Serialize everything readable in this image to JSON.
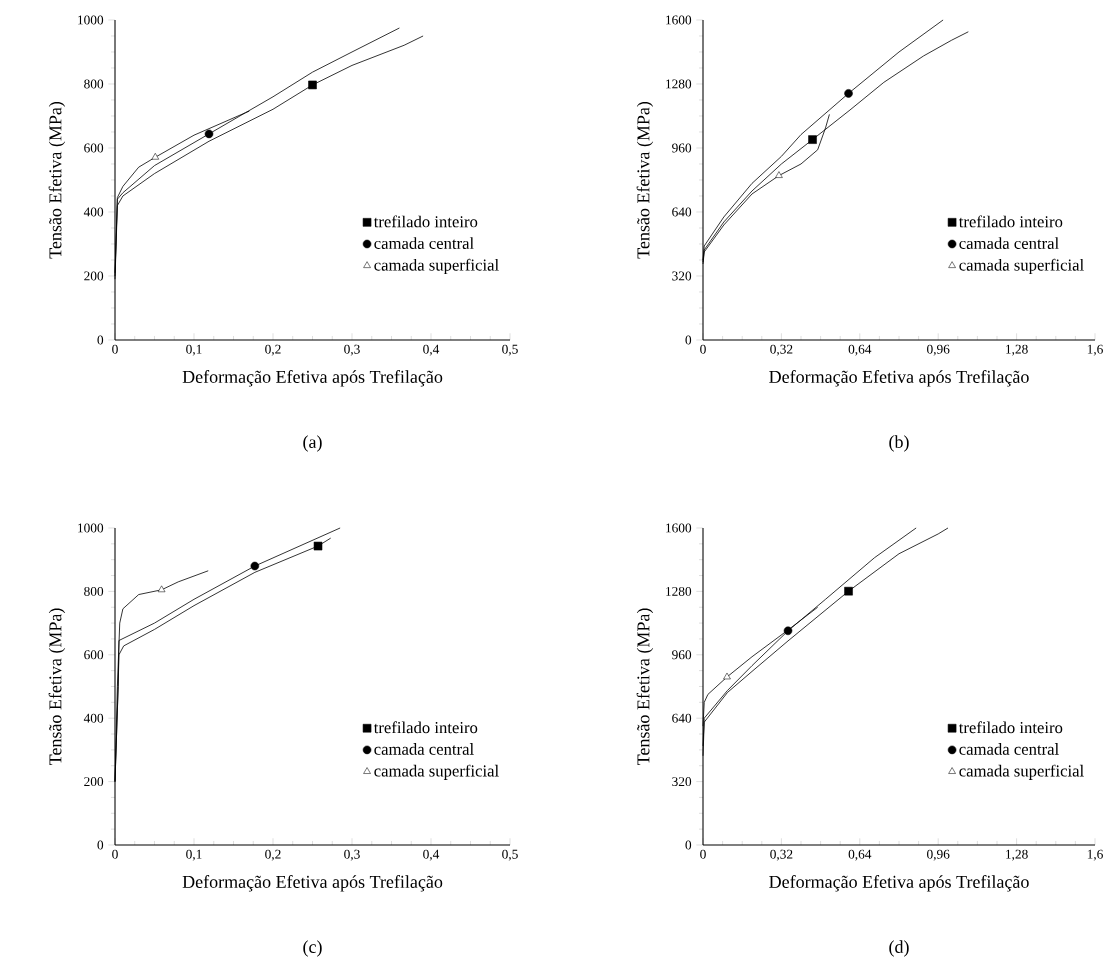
{
  "chart_data": [
    {
      "type": "line",
      "xlabel": "Deformação Efetiva após Trefilação",
      "ylabel": "Tensão Efetiva (MPa)",
      "annotations": [
        "(a)"
      ],
      "legend": "right",
      "xlim": [
        0,
        0.5
      ],
      "ylim": [
        0,
        1000
      ],
      "xticks": [
        0,
        {
          "value": 0.1,
          "label": "0,1"
        },
        {
          "value": 0.2,
          "label": "0,2"
        },
        {
          "value": 0.3,
          "label": "0,3"
        },
        {
          "value": 0.4,
          "label": "0,4"
        },
        {
          "value": 0.5,
          "label": "0,5"
        }
      ],
      "yticks": [
        0,
        200,
        400,
        600,
        800,
        1000
      ],
      "series": [
        {
          "color": "#000000",
          "x": [
            0,
            0.003,
            0.01,
            0.05,
            0.119,
            0.2,
            0.25,
            0.3,
            0.366,
            0.39
          ],
          "values": [
            190,
            420,
            450,
            520,
            621,
            721,
            797,
            858,
            921,
            950
          ]
        },
        {
          "color": "#000000",
          "x": [
            0,
            0.003,
            0.01,
            0.05,
            0.119,
            0.165,
            0.2,
            0.25,
            0.3,
            0.36
          ],
          "values": [
            200,
            440,
            460,
            545,
            644,
            710,
            760,
            837,
            900,
            975
          ]
        },
        {
          "color": "#000000",
          "x": [
            0,
            0.003,
            0.01,
            0.03,
            0.051,
            0.1,
            0.165,
            0.17
          ],
          "values": [
            210,
            445,
            480,
            540,
            571,
            640,
            710,
            715
          ]
        },
        {
          "name": "trefilado inteiro",
          "type": "scatter",
          "color": "#000000",
          "marker": "square",
          "x": [
            0.25
          ],
          "values": [
            797
          ]
        },
        {
          "name": "camada central",
          "type": "scatter",
          "color": "#000000",
          "marker": "circle",
          "x": [
            0.119
          ],
          "values": [
            644
          ]
        },
        {
          "name": "camada superficial",
          "type": "scatter",
          "color": "#000000",
          "marker": "triangle",
          "x": [
            0.051
          ],
          "values": [
            571
          ]
        }
      ]
    },
    {
      "type": "line",
      "xlabel": "Deformação Efetiva após Trefilação",
      "ylabel": "Tensão Efetiva (MPa)",
      "annotations": [
        "(b)"
      ],
      "legend": "right",
      "xlim": [
        0,
        1.6
      ],
      "ylim": [
        0,
        1600
      ],
      "xticks": [
        0,
        {
          "value": 0.32,
          "label": "0,32"
        },
        {
          "value": 0.64,
          "label": "0,64"
        },
        {
          "value": 0.96,
          "label": "0,96"
        },
        {
          "value": 1.28,
          "label": "1,28"
        },
        {
          "value": 1.6,
          "label": "1,6"
        }
      ],
      "yticks": [
        0,
        320,
        640,
        960,
        1280,
        1600
      ],
      "series": [
        {
          "color": "#000000",
          "x": [
            0,
            0.005,
            0.085,
            0.2,
            0.32,
            0.447,
            0.6,
            0.738,
            0.9,
            1.015,
            1.083
          ],
          "values": [
            390,
            450,
            590,
            745,
            880,
            1002,
            1150,
            1288,
            1420,
            1499,
            1541
          ]
        },
        {
          "color": "#000000",
          "x": [
            0,
            0.005,
            0.085,
            0.2,
            0.32,
            0.4,
            0.594,
            0.8,
            0.98
          ],
          "values": [
            400,
            470,
            615,
            783,
            918,
            1027,
            1233,
            1440,
            1600
          ]
        },
        {
          "color": "#000000",
          "x": [
            0,
            0.005,
            0.085,
            0.2,
            0.31,
            0.4,
            0.468,
            0.5,
            0.516
          ],
          "values": [
            380,
            440,
            575,
            730,
            822,
            880,
            951,
            1060,
            1128
          ]
        },
        {
          "name": "trefilado inteiro",
          "type": "scatter",
          "color": "#000000",
          "marker": "square",
          "x": [
            0.447
          ],
          "values": [
            1002
          ]
        },
        {
          "name": "camada central",
          "type": "scatter",
          "color": "#000000",
          "marker": "circle",
          "x": [
            0.594
          ],
          "values": [
            1233
          ]
        },
        {
          "name": "camada superficial",
          "type": "scatter",
          "color": "#000000",
          "marker": "triangle",
          "x": [
            0.31
          ],
          "values": [
            822
          ]
        }
      ]
    },
    {
      "type": "line",
      "xlabel": "Deformação Efetiva após Trefilação",
      "ylabel": "Tensão Efetiva (MPa)",
      "annotations": [
        "(c)"
      ],
      "legend": "right",
      "xlim": [
        0,
        0.5
      ],
      "ylim": [
        0,
        1000
      ],
      "xticks": [
        0,
        {
          "value": 0.1,
          "label": "0,1"
        },
        {
          "value": 0.2,
          "label": "0,2"
        },
        {
          "value": 0.3,
          "label": "0,3"
        },
        {
          "value": 0.4,
          "label": "0,4"
        },
        {
          "value": 0.5,
          "label": "0,5"
        }
      ],
      "yticks": [
        0,
        200,
        400,
        600,
        800,
        1000
      ],
      "series": [
        {
          "color": "#000000",
          "x": [
            0,
            0.004,
            0.005,
            0.011,
            0.05,
            0.1,
            0.177,
            0.257,
            0.273
          ],
          "values": [
            200,
            500,
            600,
            628,
            680,
            755,
            860,
            943,
            968
          ]
        },
        {
          "color": "#000000",
          "x": [
            0,
            0.004,
            0.005,
            0.05,
            0.1,
            0.177,
            0.285
          ],
          "values": [
            200,
            500,
            645,
            700,
            775,
            880,
            1000
          ]
        },
        {
          "color": "#000000",
          "x": [
            0,
            0.003,
            0.006,
            0.01,
            0.03,
            0.059,
            0.08,
            0.118
          ],
          "values": [
            200,
            500,
            700,
            745,
            790,
            805,
            830,
            865
          ]
        },
        {
          "name": "trefilado inteiro",
          "type": "scatter",
          "color": "#000000",
          "marker": "square",
          "x": [
            0.257
          ],
          "values": [
            943
          ]
        },
        {
          "name": "camada central",
          "type": "scatter",
          "color": "#000000",
          "marker": "circle",
          "x": [
            0.177
          ],
          "values": [
            880
          ]
        },
        {
          "name": "camada superficial",
          "type": "scatter",
          "color": "#000000",
          "marker": "triangle",
          "x": [
            0.059
          ],
          "values": [
            805
          ]
        }
      ]
    },
    {
      "type": "line",
      "xlabel": "Deformação Efetiva após Trefilação",
      "ylabel": "Tensão Efetiva (MPa)",
      "annotations": [
        "(d)"
      ],
      "legend": "right",
      "xlim": [
        0,
        1.6
      ],
      "ylim": [
        0,
        1600
      ],
      "xticks": [
        0,
        {
          "value": 0.32,
          "label": "0,32"
        },
        {
          "value": 0.64,
          "label": "0,64"
        },
        {
          "value": 0.96,
          "label": "0,96"
        },
        {
          "value": 1.28,
          "label": "1,28"
        },
        {
          "value": 1.6,
          "label": "1,6"
        }
      ],
      "yticks": [
        0,
        320,
        640,
        960,
        1280,
        1600
      ],
      "series": [
        {
          "color": "#000000",
          "x": [
            0,
            0.005,
            0.1,
            0.2,
            0.347,
            0.594,
            0.8,
            0.96,
            1.0
          ],
          "values": [
            450,
            620,
            770,
            876,
            1030,
            1281,
            1470,
            1570,
            1600
          ]
        },
        {
          "color": "#000000",
          "x": [
            0,
            0.005,
            0.1,
            0.2,
            0.347,
            0.5,
            0.7,
            0.87
          ],
          "values": [
            500,
            640,
            780,
            905,
            1081,
            1240,
            1450,
            1600
          ]
        },
        {
          "color": "#000000",
          "x": [
            0,
            0.005,
            0.02,
            0.098,
            0.2,
            0.347,
            0.468
          ],
          "values": [
            600,
            720,
            760,
            848,
            950,
            1085,
            1200
          ]
        },
        {
          "name": "trefilado inteiro",
          "type": "scatter",
          "color": "#000000",
          "marker": "square",
          "x": [
            0.594
          ],
          "values": [
            1281
          ]
        },
        {
          "name": "camada central",
          "type": "scatter",
          "color": "#000000",
          "marker": "circle",
          "x": [
            0.347
          ],
          "values": [
            1081
          ]
        },
        {
          "name": "camada superficial",
          "type": "scatter",
          "color": "#000000",
          "marker": "triangle",
          "x": [
            0.098
          ],
          "values": [
            848
          ]
        }
      ]
    }
  ]
}
